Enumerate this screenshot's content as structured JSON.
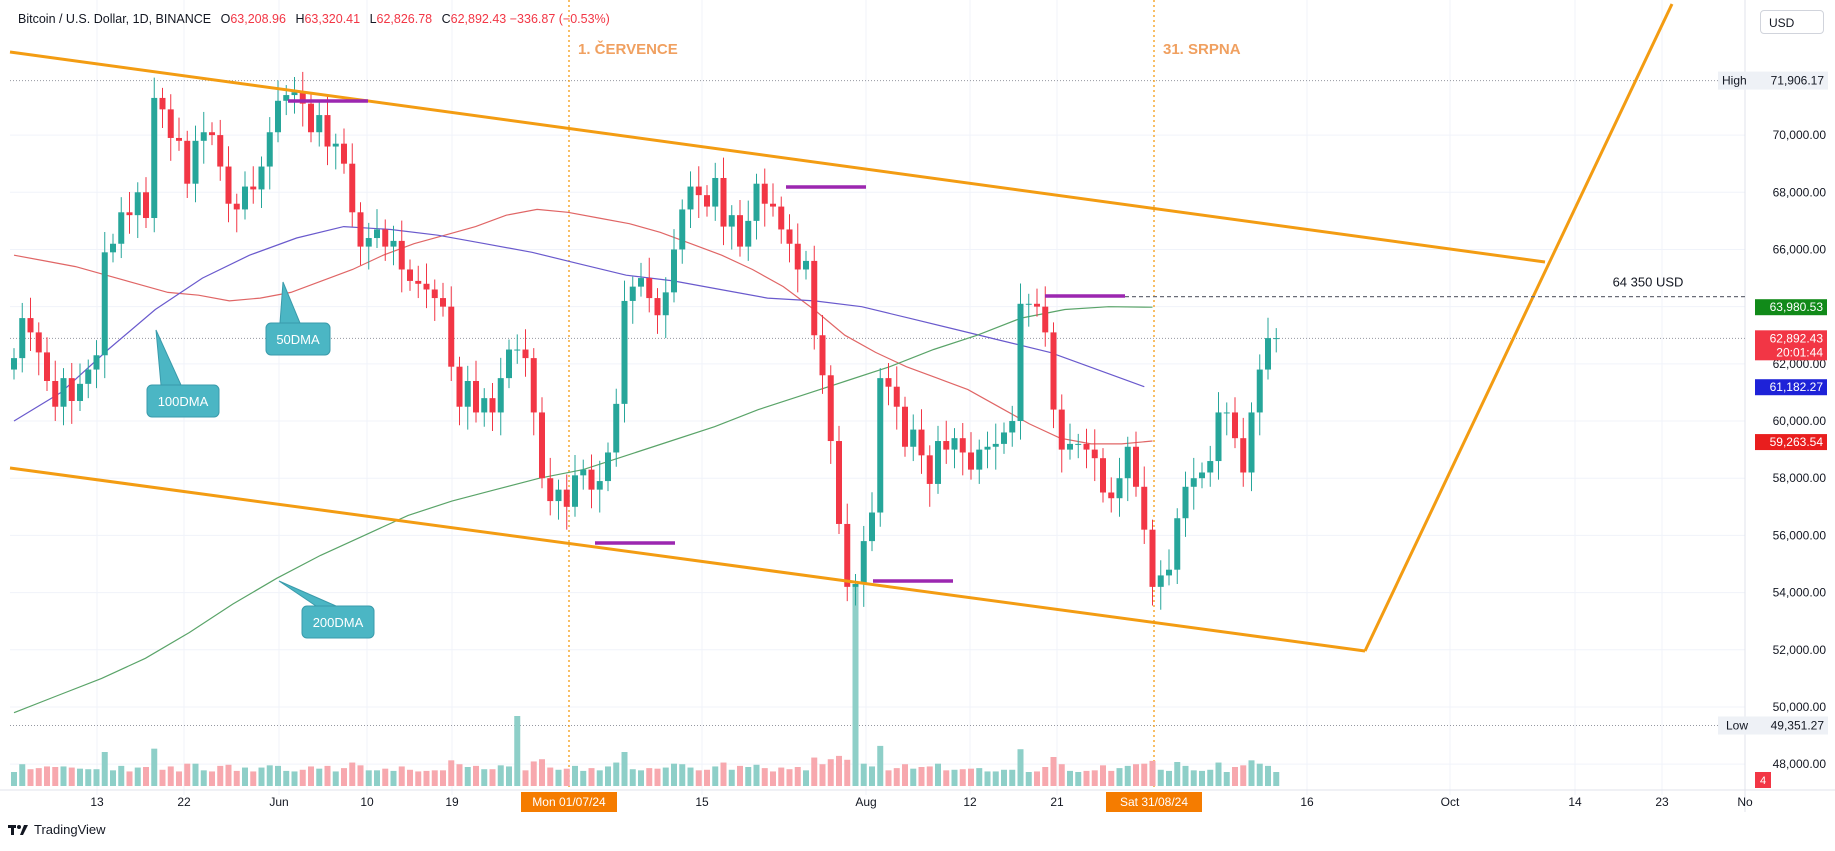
{
  "header": {
    "symbol": "Bitcoin / U.S. Dollar, 1D, BINANCE",
    "open_label": "O",
    "open": "63,208.96",
    "high_label": "H",
    "high": "63,320.41",
    "low_label": "L",
    "low": "62,826.78",
    "close_label": "C",
    "close": "62,892.43",
    "change": "−336.87 (−0.53%)"
  },
  "currency_button": "USD",
  "footer": {
    "brand": "TradingView"
  },
  "colors": {
    "up": "#26a69a",
    "down": "#f23645",
    "channel": "#f39c12",
    "ma50": "#e06666",
    "ma100": "#6a5acd",
    "ma200": "#5aa469",
    "purple_marks": "#9c27b0",
    "callout": "#4bb6c4"
  },
  "chart_data": {
    "type": "candlestick",
    "symbol": "BTCUSD",
    "timeframe": "1D",
    "ylim": [
      47000,
      73500
    ],
    "y_ticks": [
      "48,000.00",
      "50,000.00",
      "52,000.00",
      "54,000.00",
      "56,000.00",
      "58,000.00",
      "60,000.00",
      "62,000.00",
      "64,000.00",
      "66,000.00",
      "68,000.00",
      "70,000.00"
    ],
    "x_ticks": [
      "13",
      "22",
      "Jun",
      "10",
      "19",
      "15",
      "Aug",
      "12",
      "21",
      "16",
      "Oct",
      "14",
      "23",
      "No"
    ],
    "x_tick_boxes": [
      "Mon 01/07/24",
      "Sat 31/08/24"
    ],
    "vertical_labels": [
      "1. ČERVENCE",
      "31. SRPNA"
    ],
    "price_labels": {
      "high": {
        "label": "High",
        "value": "71,906.17"
      },
      "low": {
        "label": "Low",
        "value": "49,351.27"
      },
      "ma200": "63,980.53",
      "last": "62,892.43",
      "countdown": "20:01:44",
      "ma100": "61,182.27",
      "ma50": "59,263.54",
      "volume_badge": "4"
    },
    "horizontal_level": {
      "label": "64 350 USD",
      "value": 64350
    },
    "ma_callouts": [
      "50DMA",
      "100DMA",
      "200DMA"
    ],
    "closes": [
      62200,
      63600,
      63100,
      62400,
      61400,
      60500,
      61500,
      60700,
      61300,
      61800,
      62300,
      65900,
      66200,
      67300,
      67200,
      68000,
      67100,
      71300,
      70900,
      69900,
      69800,
      68300,
      69800,
      70100,
      70000,
      68900,
      67600,
      67400,
      68200,
      68100,
      68900,
      70100,
      71200,
      71400,
      71500,
      71100,
      70100,
      70700,
      69600,
      69700,
      69000,
      67300,
      66100,
      66400,
      66700,
      66100,
      66300,
      65300,
      64900,
      64800,
      64600,
      64300,
      64000,
      61900,
      60500,
      61400,
      60300,
      60800,
      60300,
      61500,
      62500,
      62500,
      62200,
      60300,
      58000,
      57200,
      57600,
      57000,
      58100,
      58300,
      57600,
      57900,
      58900,
      60600,
      64200,
      64700,
      65000,
      64300,
      63700,
      64500,
      66000,
      67400,
      68200,
      67900,
      67500,
      68500,
      66800,
      67200,
      66100,
      67000,
      68300,
      67600,
      67500,
      66700,
      66200,
      65300,
      65600,
      63000,
      61600,
      59300,
      56400,
      54200,
      54300,
      55800,
      56800,
      61500,
      61200,
      60500,
      59100,
      59700,
      58800,
      57800,
      59300,
      59000,
      59400,
      58900,
      58300,
      59000,
      59100,
      59200,
      59600,
      60000,
      64100,
      64100,
      64000,
      63100,
      60400,
      59000,
      59200,
      59200,
      59000,
      58700,
      57500,
      57300,
      58000,
      59100,
      57700,
      56200,
      54200,
      54600,
      54800,
      56600,
      57700,
      58000,
      58200,
      58600,
      60300,
      60300,
      59400,
      58200,
      60300,
      61800,
      62900,
      62900
    ],
    "series": [
      {
        "name": "50DMA",
        "values": [
          65800,
          65600,
          65400,
          65100,
          64800,
          64500,
          64400,
          64200,
          64300,
          64500,
          64900,
          65300,
          65800,
          66200,
          66500,
          66800,
          67200,
          67400,
          67300,
          67100,
          66900,
          66600,
          66200,
          65800,
          65300,
          64700,
          63900,
          63000,
          62400,
          61900,
          61500,
          61100,
          60500,
          59900,
          59400,
          59200,
          59200,
          59300
        ]
      },
      {
        "name": "100DMA",
        "values": [
          60000,
          61000,
          62500,
          63900,
          65000,
          65800,
          66400,
          66800,
          66700,
          66500,
          66200,
          65900,
          65500,
          65100,
          64900,
          64600,
          64300,
          64200,
          64000,
          63600,
          63200,
          62800,
          62400,
          61800,
          61200
        ]
      },
      {
        "name": "200DMA",
        "values": [
          49800,
          50400,
          51000,
          51700,
          52600,
          53600,
          54500,
          55300,
          56000,
          56700,
          57200,
          57600,
          58000,
          58300,
          58800,
          59300,
          59800,
          60400,
          60900,
          61400,
          61900,
          62500,
          63000,
          63600,
          63900,
          64000,
          63980
        ]
      }
    ]
  }
}
